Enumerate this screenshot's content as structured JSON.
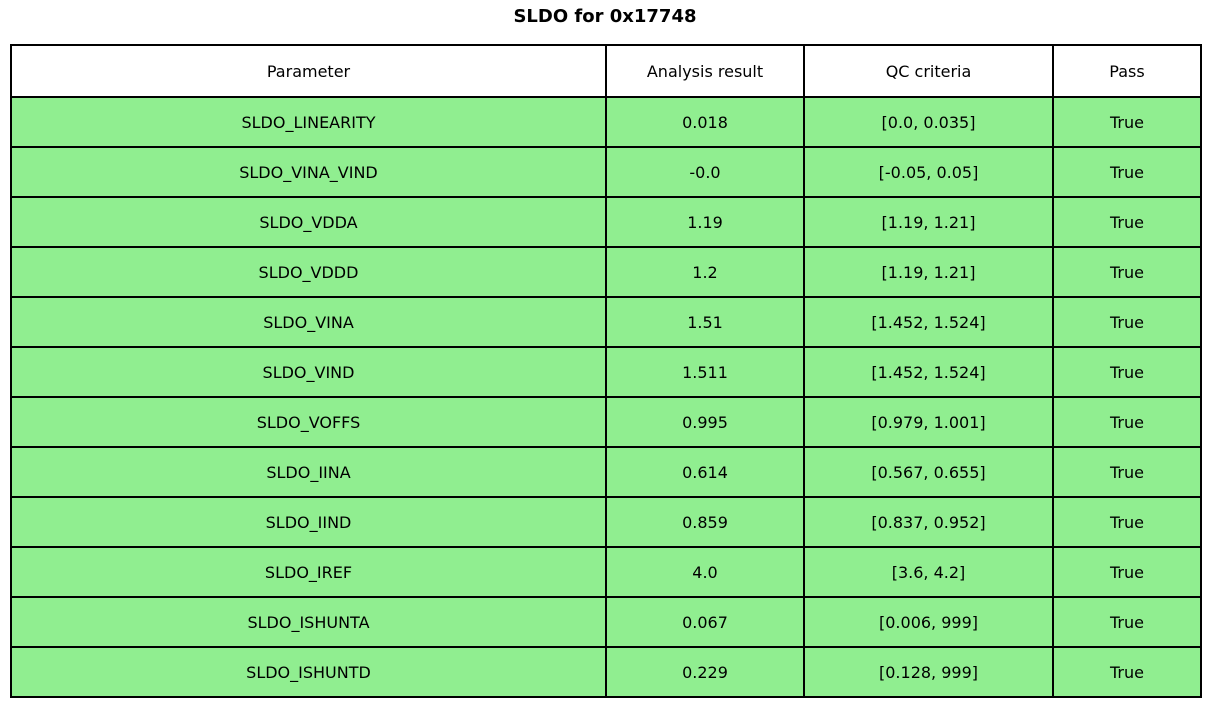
{
  "title": "SLDO for 0x17748",
  "colors": {
    "row_bg": "#90ee90",
    "header_bg": "#ffffff",
    "border": "#000000",
    "text": "#000000"
  },
  "chart_data": {
    "type": "table",
    "title": "SLDO for 0x17748",
    "columns": [
      "Parameter",
      "Analysis result",
      "QC criteria",
      "Pass"
    ],
    "rows": [
      {
        "parameter": "SLDO_LINEARITY",
        "analysis_result": "0.018",
        "qc_criteria": "[0.0, 0.035]",
        "pass": "True"
      },
      {
        "parameter": "SLDO_VINA_VIND",
        "analysis_result": "-0.0",
        "qc_criteria": "[-0.05, 0.05]",
        "pass": "True"
      },
      {
        "parameter": "SLDO_VDDA",
        "analysis_result": "1.19",
        "qc_criteria": "[1.19, 1.21]",
        "pass": "True"
      },
      {
        "parameter": "SLDO_VDDD",
        "analysis_result": "1.2",
        "qc_criteria": "[1.19, 1.21]",
        "pass": "True"
      },
      {
        "parameter": "SLDO_VINA",
        "analysis_result": "1.51",
        "qc_criteria": "[1.452, 1.524]",
        "pass": "True"
      },
      {
        "parameter": "SLDO_VIND",
        "analysis_result": "1.511",
        "qc_criteria": "[1.452, 1.524]",
        "pass": "True"
      },
      {
        "parameter": "SLDO_VOFFS",
        "analysis_result": "0.995",
        "qc_criteria": "[0.979, 1.001]",
        "pass": "True"
      },
      {
        "parameter": "SLDO_IINA",
        "analysis_result": "0.614",
        "qc_criteria": "[0.567, 0.655]",
        "pass": "True"
      },
      {
        "parameter": "SLDO_IIND",
        "analysis_result": "0.859",
        "qc_criteria": "[0.837, 0.952]",
        "pass": "True"
      },
      {
        "parameter": "SLDO_IREF",
        "analysis_result": "4.0",
        "qc_criteria": "[3.6, 4.2]",
        "pass": "True"
      },
      {
        "parameter": "SLDO_ISHUNTA",
        "analysis_result": "0.067",
        "qc_criteria": "[0.006, 999]",
        "pass": "True"
      },
      {
        "parameter": "SLDO_ISHUNTD",
        "analysis_result": "0.229",
        "qc_criteria": "[0.128, 999]",
        "pass": "True"
      }
    ]
  }
}
